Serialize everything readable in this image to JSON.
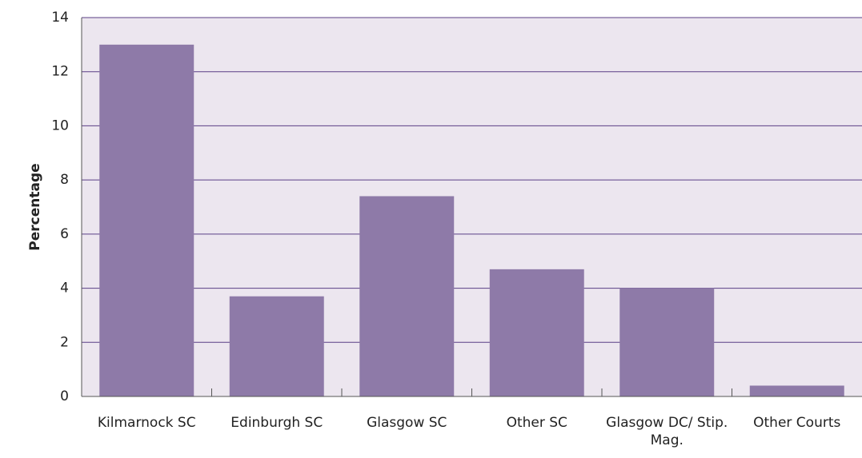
{
  "chart_data": {
    "type": "bar",
    "y_label": "Percentage",
    "categories": [
      "Kilmarnock SC",
      "Edinburgh SC",
      "Glasgow SC",
      "Other SC",
      "Glasgow DC/ Stip. Mag.",
      "Other Courts"
    ],
    "values": [
      13,
      3.7,
      7.4,
      4.7,
      4.0,
      0.4
    ],
    "color": "#8e7aa8",
    "ylim": [
      0,
      14
    ],
    "yticks": [
      0,
      2,
      4,
      6,
      8,
      10,
      12,
      14
    ],
    "grid": true
  }
}
